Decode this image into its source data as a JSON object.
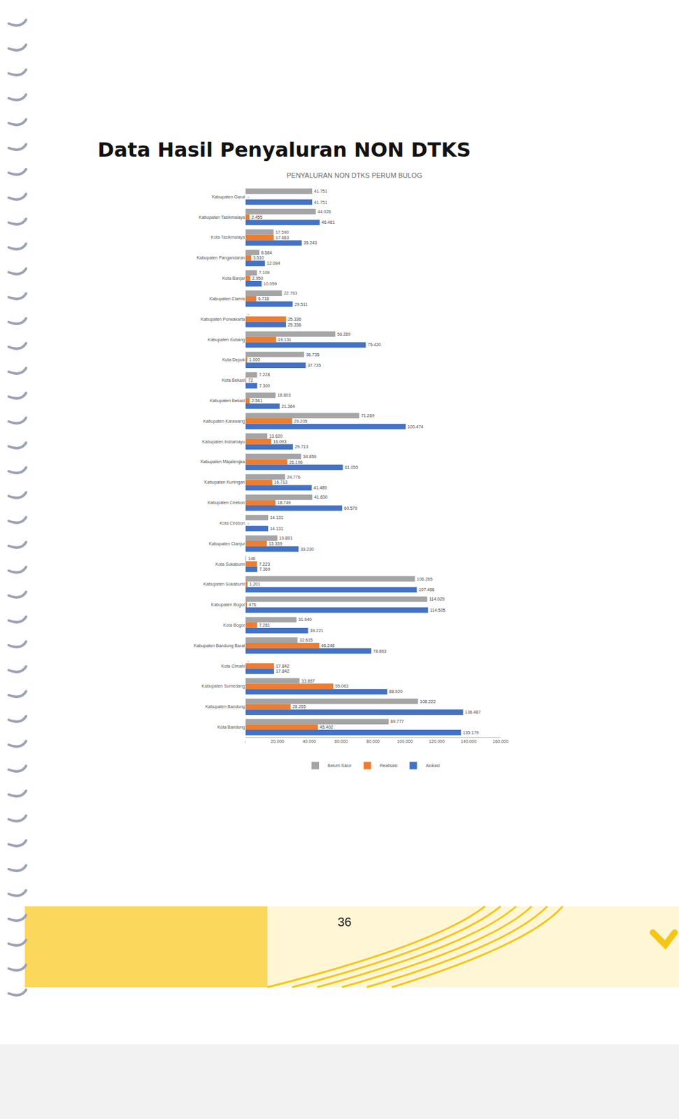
{
  "heading": "Data Hasil Penyaluran NON DTKS",
  "page_number": "36",
  "chart_data": {
    "type": "bar",
    "orientation": "horizontal",
    "title": "PENYALURAN NON DTKS PERUM BULOG",
    "categories": [
      "Kabupaten Garut",
      "Kabupaten Tasikmalaya",
      "Kota Tasikmalaya",
      "Kabupaten Pangandaran",
      "Kota Banjar",
      "Kabupaten Ciamis",
      "Kabupaten Purwakarta",
      "Kabupaten Subang",
      "Kota Depok",
      "Kota Bekasi",
      "Kabupaten Bekasi",
      "Kabupaten Karawang",
      "Kabupaten Indramayu",
      "Kabupaten Majalengka",
      "Kabupaten Kuningan",
      "Kabupaten Cirebon",
      "Kota Cirebon",
      "Kabupaten Cianjur",
      "Kota Sukabumi",
      "Kabupaten Sukabumi",
      "Kabupaten Bogor",
      "Kota Bogor",
      "Kabupaten Bandung Barat",
      "Kota Cimahi",
      "Kabupaten Sumedang",
      "Kabupaten Bandung",
      "Kota Bandung"
    ],
    "series": [
      {
        "name": "Belum Salur",
        "color": "#a5a5a5",
        "values": [
          41751,
          44026,
          17590,
          8584,
          7109,
          22793,
          0,
          56289,
          36735,
          7228,
          18803,
          71269,
          13620,
          34859,
          24776,
          41830,
          14131,
          19891,
          146,
          106265,
          114029,
          31940,
          32615,
          0,
          33857,
          108222,
          89777
        ],
        "value_labels": [
          "41.751",
          "44.026",
          "17.590",
          "8.584",
          "7.109",
          "22.793",
          "-",
          "56.289",
          "36.735",
          "7.228",
          "18.803",
          "71.269",
          "13.620",
          "34.859",
          "24.776",
          "41.830",
          "14.131",
          "19.891",
          "146",
          "106.265",
          "114.029",
          "31.940",
          "32.615",
          "-",
          "33.857",
          "108.222",
          "89.777"
        ]
      },
      {
        "name": "Realisasi",
        "color": "#ed7d31",
        "values": [
          0,
          2455,
          17653,
          3510,
          2950,
          6718,
          25336,
          19131,
          1000,
          72,
          2561,
          29205,
          16093,
          26196,
          16713,
          18749,
          0,
          13339,
          7223,
          1201,
          476,
          7281,
          46248,
          17842,
          55063,
          28265,
          45402
        ],
        "value_labels": [
          "-",
          "2.455",
          "17.653",
          "3.510",
          "2.950",
          "6.718",
          "25.336",
          "19.131",
          "1.000",
          "72",
          "2.561",
          "29.205",
          "16.093",
          "26.196",
          "16.713",
          "18.749",
          "-",
          "13.339",
          "7.223",
          "1.201",
          "476",
          "7.281",
          "46.248",
          "17.842",
          "55.063",
          "28.265",
          "45.402"
        ]
      },
      {
        "name": "Alokasi",
        "color": "#4472c4",
        "values": [
          41751,
          46481,
          35243,
          12094,
          10059,
          29511,
          25336,
          75420,
          37735,
          7300,
          21364,
          100474,
          29713,
          61055,
          41489,
          60579,
          14131,
          33230,
          7369,
          107466,
          114505,
          39221,
          78863,
          17842,
          88920,
          136487,
          135179
        ],
        "value_labels": [
          "41.751",
          "46.481",
          "35.243",
          "12.094",
          "10.059",
          "29.511",
          "25.336",
          "75.420",
          "37.735",
          "7.300",
          "21.364",
          "100.474",
          "29.713",
          "61.055",
          "41.489",
          "60.579",
          "14.131",
          "33.230",
          "7.369",
          "107.466",
          "114.505",
          "39.221",
          "78.863",
          "17.842",
          "88.920",
          "136.487",
          "135.179"
        ]
      }
    ],
    "xlim": [
      0,
      160000
    ],
    "xticks": [
      {
        "value": 0,
        "label": "-"
      },
      {
        "value": 20000,
        "label": "20.000"
      },
      {
        "value": 40000,
        "label": "40.000"
      },
      {
        "value": 60000,
        "label": "60.000"
      },
      {
        "value": 80000,
        "label": "80.000"
      },
      {
        "value": 100000,
        "label": "100.000"
      },
      {
        "value": 120000,
        "label": "120.000"
      },
      {
        "value": 140000,
        "label": "140.000"
      },
      {
        "value": 160000,
        "label": "160.000"
      }
    ],
    "grid": false,
    "legend": "bottom",
    "data_labels": true
  }
}
